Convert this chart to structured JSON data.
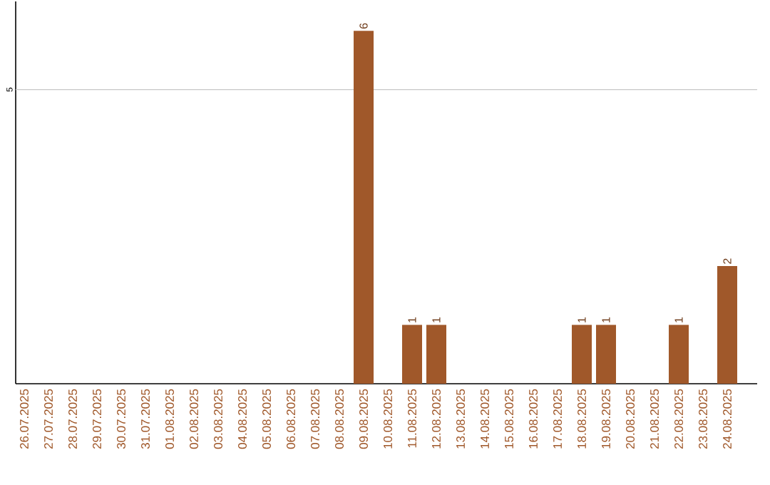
{
  "chart_data": {
    "type": "bar",
    "categories": [
      "26.07.2025",
      "27.07.2025",
      "28.07.2025",
      "29.07.2025",
      "30.07.2025",
      "31.07.2025",
      "01.08.2025",
      "02.08.2025",
      "03.08.2025",
      "04.08.2025",
      "05.08.2025",
      "06.08.2025",
      "07.08.2025",
      "08.08.2025",
      "09.08.2025",
      "10.08.2025",
      "11.08.2025",
      "12.08.2025",
      "13.08.2025",
      "14.08.2025",
      "15.08.2025",
      "16.08.2025",
      "17.08.2025",
      "18.08.2025",
      "19.08.2025",
      "20.08.2025",
      "21.08.2025",
      "22.08.2025",
      "23.08.2025",
      "24.08.2025"
    ],
    "values": [
      null,
      null,
      null,
      null,
      null,
      null,
      null,
      null,
      null,
      null,
      null,
      null,
      null,
      null,
      6,
      null,
      1,
      1,
      null,
      null,
      null,
      null,
      null,
      1,
      1,
      null,
      null,
      1,
      null,
      2
    ],
    "data_labels": true,
    "color": "#a0582a",
    "ylim": [
      0,
      6.5
    ],
    "ref_lines": [
      {
        "axis": "y",
        "value": 5,
        "label": "5",
        "color": "#c8c8c8"
      }
    ]
  }
}
